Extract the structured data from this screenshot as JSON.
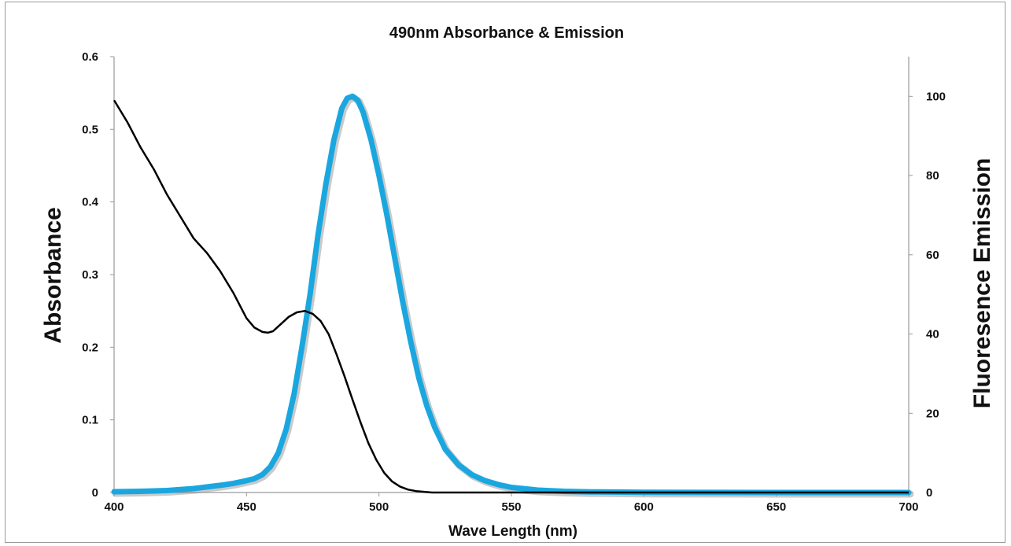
{
  "chart_data": {
    "type": "line",
    "title": "490nm Absorbance & Emission",
    "xlabel": "Wave Length (nm)",
    "ylabel_left": "Absorbance",
    "ylabel_right": "Fluoresence Emission",
    "xlim": [
      400,
      700
    ],
    "ylim_left": [
      0,
      0.6
    ],
    "ylim_right": [
      0,
      110
    ],
    "x_ticks": [
      400,
      450,
      500,
      550,
      600,
      650,
      700
    ],
    "y_left_ticks": [
      0,
      0.1,
      0.2,
      0.3,
      0.4,
      0.5,
      0.6
    ],
    "y_right_ticks": [
      0,
      20,
      40,
      60,
      80,
      100
    ],
    "grid": false,
    "legend": "none",
    "series": [
      {
        "axis": "left",
        "color": "#000000",
        "x": [
          400,
          405,
          410,
          415,
          420,
          425,
          430,
          435,
          440,
          445,
          450,
          453,
          456,
          458,
          460,
          463,
          466,
          469,
          472,
          475,
          478,
          481,
          484,
          487,
          490,
          493,
          496,
          499,
          502,
          505,
          508,
          511,
          514,
          517,
          520,
          525,
          530,
          540,
          560,
          600,
          650,
          700
        ],
        "y": [
          0.54,
          0.51,
          0.475,
          0.445,
          0.41,
          0.38,
          0.35,
          0.33,
          0.305,
          0.275,
          0.24,
          0.227,
          0.221,
          0.22,
          0.222,
          0.232,
          0.242,
          0.248,
          0.25,
          0.246,
          0.236,
          0.218,
          0.19,
          0.16,
          0.128,
          0.097,
          0.068,
          0.045,
          0.027,
          0.015,
          0.008,
          0.004,
          0.002,
          0.001,
          0.0,
          0.0,
          0.0,
          0.0,
          0.0,
          0.0,
          0.0,
          0.0
        ]
      },
      {
        "axis": "right",
        "color": "#1aa7e0",
        "x": [
          400,
          410,
          420,
          430,
          440,
          445,
          450,
          453,
          456,
          459,
          462,
          465,
          468,
          471,
          474,
          477,
          480,
          483,
          486,
          488,
          490,
          492,
          494,
          497,
          500,
          503,
          506,
          509,
          512,
          515,
          518,
          521,
          525,
          530,
          535,
          540,
          545,
          550,
          560,
          570,
          580,
          600,
          650,
          700
        ],
        "y": [
          0.2,
          0.3,
          0.5,
          1.0,
          1.8,
          2.3,
          3.0,
          3.5,
          4.5,
          6.5,
          10,
          16,
          25,
          37,
          50,
          65,
          78,
          89,
          97,
          99.5,
          100,
          99,
          96,
          89,
          80,
          70,
          59,
          48,
          38,
          29,
          22,
          16.5,
          11,
          7,
          4.5,
          3,
          2,
          1.3,
          0.6,
          0.3,
          0.15,
          0.05,
          0.0,
          0.0
        ]
      }
    ]
  }
}
